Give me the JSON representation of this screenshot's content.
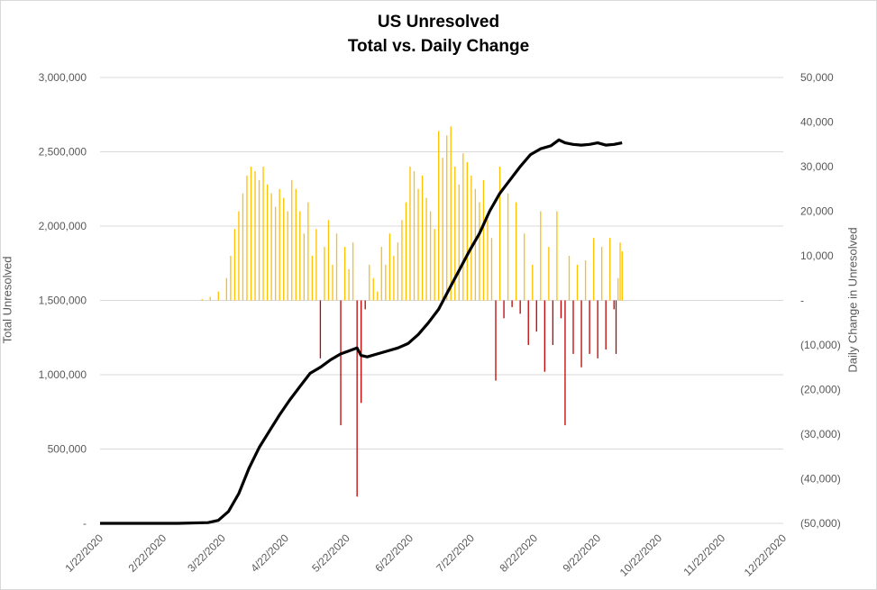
{
  "chart_data": {
    "type": "bar+line",
    "title": "US Unresolved",
    "subtitle": "Total vs. Daily Change",
    "ylabel_left": "Total Unresolved",
    "ylabel_right": "Daily Change in Unresolved",
    "ylim_left": [
      0,
      3000000
    ],
    "ylim_right": [
      -50000,
      50000
    ],
    "y_ticks_left": [
      "-",
      "500,000",
      "1,000,000",
      "1,500,000",
      "2,000,000",
      "2,500,000",
      "3,000,000"
    ],
    "y_ticks_right": [
      "(50,000)",
      "(40,000)",
      "(30,000)",
      "(20,000)",
      "(10,000)",
      "-",
      "10,000",
      "20,000",
      "30,000",
      "40,000",
      "50,000"
    ],
    "x_ticks": [
      "1/22/2020",
      "2/22/2020",
      "3/22/2020",
      "4/22/2020",
      "5/22/2020",
      "6/22/2020",
      "7/22/2020",
      "8/22/2020",
      "9/22/2020",
      "10/22/2020",
      "11/22/2020",
      "12/22/2020"
    ],
    "x_start_date": "2020-01-22",
    "grid": true,
    "colors": {
      "line": "#000000",
      "bar_positive": "#ffc000",
      "bar_negative": "#c00000",
      "grid": "#d9d9d9",
      "tick_text": "#595959"
    },
    "series": [
      {
        "name": "Total Unresolved",
        "type": "line",
        "axis": "left",
        "points": [
          {
            "x": "2020-01-22",
            "y": 0
          },
          {
            "x": "2020-02-29",
            "y": 0
          },
          {
            "x": "2020-03-15",
            "y": 5000
          },
          {
            "x": "2020-03-20",
            "y": 20000
          },
          {
            "x": "2020-03-25",
            "y": 80000
          },
          {
            "x": "2020-03-30",
            "y": 200000
          },
          {
            "x": "2020-04-04",
            "y": 370000
          },
          {
            "x": "2020-04-09",
            "y": 510000
          },
          {
            "x": "2020-04-14",
            "y": 620000
          },
          {
            "x": "2020-04-19",
            "y": 730000
          },
          {
            "x": "2020-04-24",
            "y": 830000
          },
          {
            "x": "2020-04-29",
            "y": 920000
          },
          {
            "x": "2020-05-04",
            "y": 1010000
          },
          {
            "x": "2020-05-09",
            "y": 1050000
          },
          {
            "x": "2020-05-14",
            "y": 1100000
          },
          {
            "x": "2020-05-19",
            "y": 1140000
          },
          {
            "x": "2020-05-23",
            "y": 1160000
          },
          {
            "x": "2020-05-27",
            "y": 1180000
          },
          {
            "x": "2020-05-29",
            "y": 1130000
          },
          {
            "x": "2020-06-01",
            "y": 1120000
          },
          {
            "x": "2020-06-06",
            "y": 1140000
          },
          {
            "x": "2020-06-11",
            "y": 1160000
          },
          {
            "x": "2020-06-16",
            "y": 1180000
          },
          {
            "x": "2020-06-21",
            "y": 1210000
          },
          {
            "x": "2020-06-26",
            "y": 1270000
          },
          {
            "x": "2020-07-01",
            "y": 1350000
          },
          {
            "x": "2020-07-06",
            "y": 1440000
          },
          {
            "x": "2020-07-11",
            "y": 1570000
          },
          {
            "x": "2020-07-16",
            "y": 1700000
          },
          {
            "x": "2020-07-21",
            "y": 1830000
          },
          {
            "x": "2020-07-26",
            "y": 1950000
          },
          {
            "x": "2020-07-31",
            "y": 2100000
          },
          {
            "x": "2020-08-05",
            "y": 2220000
          },
          {
            "x": "2020-08-10",
            "y": 2310000
          },
          {
            "x": "2020-08-15",
            "y": 2400000
          },
          {
            "x": "2020-08-20",
            "y": 2480000
          },
          {
            "x": "2020-08-25",
            "y": 2520000
          },
          {
            "x": "2020-08-30",
            "y": 2540000
          },
          {
            "x": "2020-09-03",
            "y": 2580000
          },
          {
            "x": "2020-09-06",
            "y": 2560000
          },
          {
            "x": "2020-09-10",
            "y": 2550000
          },
          {
            "x": "2020-09-14",
            "y": 2545000
          },
          {
            "x": "2020-09-18",
            "y": 2550000
          },
          {
            "x": "2020-09-22",
            "y": 2560000
          },
          {
            "x": "2020-09-26",
            "y": 2545000
          },
          {
            "x": "2020-09-30",
            "y": 2550000
          },
          {
            "x": "2020-10-04",
            "y": 2560000
          }
        ]
      },
      {
        "name": "Daily Change in Unresolved",
        "type": "bar",
        "axis": "right",
        "points": [
          {
            "x": "2020-03-12",
            "y": 300
          },
          {
            "x": "2020-03-16",
            "y": 800
          },
          {
            "x": "2020-03-20",
            "y": 2000
          },
          {
            "x": "2020-03-24",
            "y": 5000
          },
          {
            "x": "2020-03-26",
            "y": 10000
          },
          {
            "x": "2020-03-28",
            "y": 16000
          },
          {
            "x": "2020-03-30",
            "y": 20000
          },
          {
            "x": "2020-04-01",
            "y": 24000
          },
          {
            "x": "2020-04-03",
            "y": 28000
          },
          {
            "x": "2020-04-05",
            "y": 30000
          },
          {
            "x": "2020-04-07",
            "y": 29000
          },
          {
            "x": "2020-04-09",
            "y": 27000
          },
          {
            "x": "2020-04-11",
            "y": 30000
          },
          {
            "x": "2020-04-13",
            "y": 26000
          },
          {
            "x": "2020-04-15",
            "y": 24000
          },
          {
            "x": "2020-04-17",
            "y": 21000
          },
          {
            "x": "2020-04-19",
            "y": 25000
          },
          {
            "x": "2020-04-21",
            "y": 23000
          },
          {
            "x": "2020-04-23",
            "y": 20000
          },
          {
            "x": "2020-04-25",
            "y": 27000
          },
          {
            "x": "2020-04-27",
            "y": 25000
          },
          {
            "x": "2020-04-29",
            "y": 20000
          },
          {
            "x": "2020-05-01",
            "y": 15000
          },
          {
            "x": "2020-05-03",
            "y": 22000
          },
          {
            "x": "2020-05-05",
            "y": 10000
          },
          {
            "x": "2020-05-07",
            "y": 16000
          },
          {
            "x": "2020-05-09",
            "y": -13000
          },
          {
            "x": "2020-05-11",
            "y": 12000
          },
          {
            "x": "2020-05-13",
            "y": 18000
          },
          {
            "x": "2020-05-15",
            "y": 8000
          },
          {
            "x": "2020-05-17",
            "y": 15000
          },
          {
            "x": "2020-05-19",
            "y": -28000
          },
          {
            "x": "2020-05-21",
            "y": 12000
          },
          {
            "x": "2020-05-23",
            "y": 7000
          },
          {
            "x": "2020-05-25",
            "y": 13000
          },
          {
            "x": "2020-05-27",
            "y": -44000
          },
          {
            "x": "2020-05-29",
            "y": -23000
          },
          {
            "x": "2020-05-31",
            "y": -2000
          },
          {
            "x": "2020-06-02",
            "y": 8000
          },
          {
            "x": "2020-06-04",
            "y": 5000
          },
          {
            "x": "2020-06-06",
            "y": 2000
          },
          {
            "x": "2020-06-08",
            "y": 12000
          },
          {
            "x": "2020-06-10",
            "y": 8000
          },
          {
            "x": "2020-06-12",
            "y": 15000
          },
          {
            "x": "2020-06-14",
            "y": 10000
          },
          {
            "x": "2020-06-16",
            "y": 13000
          },
          {
            "x": "2020-06-18",
            "y": 18000
          },
          {
            "x": "2020-06-20",
            "y": 22000
          },
          {
            "x": "2020-06-22",
            "y": 30000
          },
          {
            "x": "2020-06-24",
            "y": 29000
          },
          {
            "x": "2020-06-26",
            "y": 25000
          },
          {
            "x": "2020-06-28",
            "y": 28000
          },
          {
            "x": "2020-06-30",
            "y": 23000
          },
          {
            "x": "2020-07-02",
            "y": 20000
          },
          {
            "x": "2020-07-04",
            "y": 16000
          },
          {
            "x": "2020-07-06",
            "y": 38000
          },
          {
            "x": "2020-07-08",
            "y": 32000
          },
          {
            "x": "2020-07-10",
            "y": 37000
          },
          {
            "x": "2020-07-12",
            "y": 39000
          },
          {
            "x": "2020-07-14",
            "y": 30000
          },
          {
            "x": "2020-07-16",
            "y": 26000
          },
          {
            "x": "2020-07-18",
            "y": 33000
          },
          {
            "x": "2020-07-20",
            "y": 31000
          },
          {
            "x": "2020-07-22",
            "y": 28000
          },
          {
            "x": "2020-07-24",
            "y": 25000
          },
          {
            "x": "2020-07-26",
            "y": 22000
          },
          {
            "x": "2020-07-28",
            "y": 27000
          },
          {
            "x": "2020-07-30",
            "y": 18000
          },
          {
            "x": "2020-08-01",
            "y": 14000
          },
          {
            "x": "2020-08-03",
            "y": -18000
          },
          {
            "x": "2020-08-05",
            "y": 30000
          },
          {
            "x": "2020-08-07",
            "y": -4000
          },
          {
            "x": "2020-08-09",
            "y": 24000
          },
          {
            "x": "2020-08-11",
            "y": -1500
          },
          {
            "x": "2020-08-13",
            "y": 22000
          },
          {
            "x": "2020-08-15",
            "y": -3000
          },
          {
            "x": "2020-08-17",
            "y": 15000
          },
          {
            "x": "2020-08-19",
            "y": -10000
          },
          {
            "x": "2020-08-21",
            "y": 8000
          },
          {
            "x": "2020-08-23",
            "y": -7000
          },
          {
            "x": "2020-08-25",
            "y": 20000
          },
          {
            "x": "2020-08-27",
            "y": -16000
          },
          {
            "x": "2020-08-29",
            "y": 12000
          },
          {
            "x": "2020-08-31",
            "y": -10000
          },
          {
            "x": "2020-09-02",
            "y": 20000
          },
          {
            "x": "2020-09-04",
            "y": -4000
          },
          {
            "x": "2020-09-06",
            "y": -28000
          },
          {
            "x": "2020-09-08",
            "y": 10000
          },
          {
            "x": "2020-09-10",
            "y": -12000
          },
          {
            "x": "2020-09-12",
            "y": 8000
          },
          {
            "x": "2020-09-14",
            "y": -15000
          },
          {
            "x": "2020-09-16",
            "y": 9000
          },
          {
            "x": "2020-09-18",
            "y": -12000
          },
          {
            "x": "2020-09-20",
            "y": 14000
          },
          {
            "x": "2020-09-22",
            "y": -13000
          },
          {
            "x": "2020-09-24",
            "y": 12000
          },
          {
            "x": "2020-09-26",
            "y": -11000
          },
          {
            "x": "2020-09-28",
            "y": 14000
          },
          {
            "x": "2020-09-30",
            "y": -2000
          },
          {
            "x": "2020-10-01",
            "y": -12000
          },
          {
            "x": "2020-10-02",
            "y": 5000
          },
          {
            "x": "2020-10-03",
            "y": 13000
          },
          {
            "x": "2020-10-04",
            "y": 11000
          }
        ]
      }
    ]
  }
}
